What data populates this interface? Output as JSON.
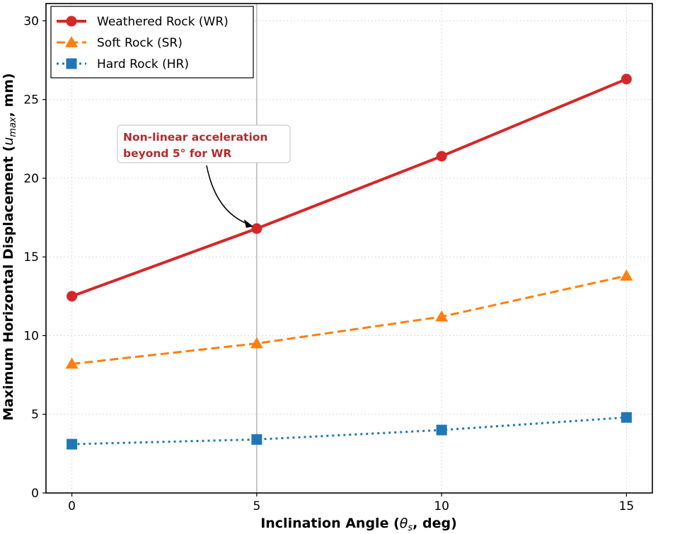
{
  "chart_data": {
    "type": "line",
    "xlabel": {
      "prefix": "Inclination Angle (",
      "symbol": "θ",
      "subscript": "s",
      "suffix": ", deg)"
    },
    "ylabel": {
      "prefix": "Maximum Horizontal Displacement (",
      "symbol": "u",
      "subscript": "max",
      "suffix": ", mm)"
    },
    "x": [
      0,
      5,
      10,
      15
    ],
    "x_ticks": [
      "0",
      "5",
      "10",
      "15"
    ],
    "y_ticks": [
      "0",
      "5",
      "10",
      "15",
      "20",
      "25",
      "30"
    ],
    "xlim": [
      -0.7,
      15.7
    ],
    "ylim": [
      0,
      31.1
    ],
    "grid": true,
    "legend_position": "top-left",
    "series": [
      {
        "name": "Weathered Rock (WR)",
        "values": [
          12.5,
          16.8,
          21.4,
          26.3
        ],
        "color": "#d62728",
        "marker": "circle",
        "linestyle": "solid"
      },
      {
        "name": "Soft Rock (SR)",
        "values": [
          8.2,
          9.5,
          11.2,
          13.8
        ],
        "color": "#ff7f0e",
        "marker": "triangle",
        "linestyle": "dashed"
      },
      {
        "name": "Hard Rock (HR)",
        "values": [
          3.1,
          3.4,
          4.0,
          4.8
        ],
        "color": "#1f77b4",
        "marker": "square",
        "linestyle": "dotted"
      }
    ],
    "reference_line": {
      "x": 5,
      "color": "#bbbbbb"
    },
    "annotation": {
      "lines": [
        "Non-linear acceleration",
        "beyond 5° for WR"
      ],
      "color": "#b22a2e",
      "target": {
        "x": 5,
        "y": 16.8
      }
    }
  }
}
